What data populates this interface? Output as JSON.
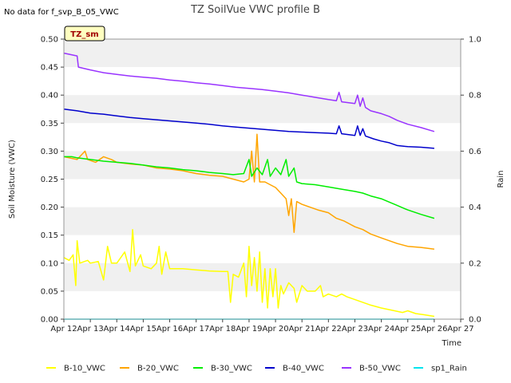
{
  "note": "No data for f_svp_B_05_VWC",
  "chart_data": {
    "type": "line",
    "title": "TZ SoilVue VWC profile B",
    "xlabel": "Time",
    "ylabel": "Soil Moisture (VWC)",
    "y2label": "Rain",
    "badge": "TZ_sm",
    "x_ticks": [
      "Apr 12",
      "Apr 13",
      "Apr 14",
      "Apr 15",
      "Apr 16",
      "Apr 17",
      "Apr 18",
      "Apr 19",
      "Apr 20",
      "Apr 21",
      "Apr 22",
      "Apr 23",
      "Apr 24",
      "Apr 25",
      "Apr 26",
      "Apr 27"
    ],
    "xlim": [
      0,
      15
    ],
    "ylim": [
      0.0,
      0.5
    ],
    "y_ticks": [
      "0.00",
      "0.05",
      "0.10",
      "0.15",
      "0.20",
      "0.25",
      "0.30",
      "0.35",
      "0.40",
      "0.45",
      "0.50"
    ],
    "y2lim": [
      0.0,
      1.0
    ],
    "y2_ticks": [
      "0.0",
      "0.2",
      "0.4",
      "0.6",
      "0.8",
      "1.0"
    ],
    "grid": "horizontal bands",
    "legend_position": "bottom",
    "series": [
      {
        "name": "B-10_VWC",
        "color": "#ffff00",
        "axis": "left",
        "points": [
          [
            0.0,
            0.11
          ],
          [
            0.2,
            0.105
          ],
          [
            0.35,
            0.115
          ],
          [
            0.45,
            0.06
          ],
          [
            0.5,
            0.14
          ],
          [
            0.6,
            0.1
          ],
          [
            0.9,
            0.105
          ],
          [
            1.0,
            0.1
          ],
          [
            1.3,
            0.103
          ],
          [
            1.5,
            0.07
          ],
          [
            1.65,
            0.13
          ],
          [
            1.8,
            0.1
          ],
          [
            2.0,
            0.1
          ],
          [
            2.3,
            0.12
          ],
          [
            2.5,
            0.085
          ],
          [
            2.6,
            0.16
          ],
          [
            2.7,
            0.095
          ],
          [
            2.9,
            0.115
          ],
          [
            3.0,
            0.095
          ],
          [
            3.3,
            0.09
          ],
          [
            3.5,
            0.1
          ],
          [
            3.6,
            0.13
          ],
          [
            3.7,
            0.08
          ],
          [
            3.85,
            0.12
          ],
          [
            4.0,
            0.09
          ],
          [
            4.5,
            0.09
          ],
          [
            5.0,
            0.088
          ],
          [
            5.5,
            0.086
          ],
          [
            6.0,
            0.085
          ],
          [
            6.2,
            0.085
          ],
          [
            6.3,
            0.03
          ],
          [
            6.4,
            0.08
          ],
          [
            6.6,
            0.075
          ],
          [
            6.8,
            0.1
          ],
          [
            6.9,
            0.04
          ],
          [
            7.0,
            0.13
          ],
          [
            7.1,
            0.06
          ],
          [
            7.2,
            0.11
          ],
          [
            7.3,
            0.05
          ],
          [
            7.4,
            0.12
          ],
          [
            7.5,
            0.03
          ],
          [
            7.6,
            0.09
          ],
          [
            7.7,
            0.02
          ],
          [
            7.8,
            0.09
          ],
          [
            7.9,
            0.04
          ],
          [
            8.0,
            0.09
          ],
          [
            8.1,
            0.02
          ],
          [
            8.2,
            0.06
          ],
          [
            8.3,
            0.045
          ],
          [
            8.5,
            0.065
          ],
          [
            8.7,
            0.055
          ],
          [
            8.8,
            0.03
          ],
          [
            9.0,
            0.06
          ],
          [
            9.2,
            0.05
          ],
          [
            9.5,
            0.05
          ],
          [
            9.7,
            0.06
          ],
          [
            9.8,
            0.04
          ],
          [
            10.0,
            0.045
          ],
          [
            10.3,
            0.04
          ],
          [
            10.5,
            0.045
          ],
          [
            10.7,
            0.04
          ],
          [
            11.0,
            0.035
          ],
          [
            11.3,
            0.03
          ],
          [
            11.6,
            0.025
          ],
          [
            12.0,
            0.02
          ],
          [
            12.5,
            0.015
          ],
          [
            12.8,
            0.012
          ],
          [
            13.0,
            0.015
          ],
          [
            13.3,
            0.01
          ],
          [
            13.6,
            0.008
          ],
          [
            14.0,
            0.005
          ]
        ]
      },
      {
        "name": "B-20_VWC",
        "color": "#ffa500",
        "axis": "left",
        "points": [
          [
            0.0,
            0.29
          ],
          [
            0.5,
            0.285
          ],
          [
            0.8,
            0.3
          ],
          [
            0.9,
            0.285
          ],
          [
            1.2,
            0.28
          ],
          [
            1.5,
            0.29
          ],
          [
            1.8,
            0.285
          ],
          [
            2.0,
            0.28
          ],
          [
            2.5,
            0.277
          ],
          [
            3.0,
            0.275
          ],
          [
            3.5,
            0.27
          ],
          [
            4.0,
            0.268
          ],
          [
            4.5,
            0.265
          ],
          [
            5.0,
            0.26
          ],
          [
            5.5,
            0.257
          ],
          [
            6.0,
            0.255
          ],
          [
            6.4,
            0.25
          ],
          [
            6.8,
            0.245
          ],
          [
            7.0,
            0.25
          ],
          [
            7.1,
            0.3
          ],
          [
            7.2,
            0.245
          ],
          [
            7.3,
            0.33
          ],
          [
            7.4,
            0.245
          ],
          [
            7.6,
            0.245
          ],
          [
            7.8,
            0.24
          ],
          [
            8.0,
            0.235
          ],
          [
            8.2,
            0.225
          ],
          [
            8.4,
            0.215
          ],
          [
            8.5,
            0.185
          ],
          [
            8.6,
            0.215
          ],
          [
            8.7,
            0.155
          ],
          [
            8.8,
            0.21
          ],
          [
            9.0,
            0.205
          ],
          [
            9.3,
            0.2
          ],
          [
            9.6,
            0.195
          ],
          [
            10.0,
            0.19
          ],
          [
            10.3,
            0.18
          ],
          [
            10.6,
            0.175
          ],
          [
            11.0,
            0.165
          ],
          [
            11.3,
            0.16
          ],
          [
            11.6,
            0.152
          ],
          [
            12.0,
            0.145
          ],
          [
            12.3,
            0.14
          ],
          [
            12.6,
            0.135
          ],
          [
            13.0,
            0.13
          ],
          [
            13.5,
            0.128
          ],
          [
            14.0,
            0.125
          ]
        ]
      },
      {
        "name": "B-30_VWC",
        "color": "#00ee00",
        "axis": "left",
        "points": [
          [
            0.0,
            0.29
          ],
          [
            0.3,
            0.29
          ],
          [
            0.5,
            0.288
          ],
          [
            1.0,
            0.285
          ],
          [
            1.5,
            0.282
          ],
          [
            2.0,
            0.28
          ],
          [
            2.5,
            0.278
          ],
          [
            3.0,
            0.275
          ],
          [
            3.5,
            0.272
          ],
          [
            4.0,
            0.27
          ],
          [
            4.5,
            0.267
          ],
          [
            5.0,
            0.265
          ],
          [
            5.5,
            0.262
          ],
          [
            6.0,
            0.26
          ],
          [
            6.4,
            0.258
          ],
          [
            6.8,
            0.26
          ],
          [
            7.0,
            0.285
          ],
          [
            7.1,
            0.255
          ],
          [
            7.3,
            0.27
          ],
          [
            7.5,
            0.258
          ],
          [
            7.7,
            0.285
          ],
          [
            7.8,
            0.255
          ],
          [
            8.0,
            0.27
          ],
          [
            8.2,
            0.258
          ],
          [
            8.4,
            0.285
          ],
          [
            8.5,
            0.255
          ],
          [
            8.7,
            0.27
          ],
          [
            8.8,
            0.245
          ],
          [
            9.0,
            0.242
          ],
          [
            9.5,
            0.24
          ],
          [
            10.0,
            0.236
          ],
          [
            10.5,
            0.232
          ],
          [
            11.0,
            0.228
          ],
          [
            11.3,
            0.225
          ],
          [
            11.6,
            0.22
          ],
          [
            12.0,
            0.215
          ],
          [
            12.5,
            0.205
          ],
          [
            13.0,
            0.195
          ],
          [
            13.5,
            0.187
          ],
          [
            14.0,
            0.18
          ]
        ]
      },
      {
        "name": "B-40_VWC",
        "color": "#0000cc",
        "axis": "left",
        "points": [
          [
            0.0,
            0.375
          ],
          [
            0.5,
            0.372
          ],
          [
            1.0,
            0.368
          ],
          [
            1.5,
            0.366
          ],
          [
            2.0,
            0.363
          ],
          [
            2.5,
            0.36
          ],
          [
            3.0,
            0.358
          ],
          [
            3.5,
            0.356
          ],
          [
            4.0,
            0.354
          ],
          [
            4.5,
            0.352
          ],
          [
            5.0,
            0.35
          ],
          [
            5.5,
            0.348
          ],
          [
            6.0,
            0.345
          ],
          [
            6.5,
            0.343
          ],
          [
            7.0,
            0.341
          ],
          [
            7.5,
            0.339
          ],
          [
            8.0,
            0.337
          ],
          [
            8.5,
            0.335
          ],
          [
            9.0,
            0.334
          ],
          [
            9.5,
            0.333
          ],
          [
            10.0,
            0.332
          ],
          [
            10.3,
            0.331
          ],
          [
            10.4,
            0.345
          ],
          [
            10.5,
            0.331
          ],
          [
            11.0,
            0.328
          ],
          [
            11.1,
            0.345
          ],
          [
            11.2,
            0.328
          ],
          [
            11.3,
            0.34
          ],
          [
            11.4,
            0.327
          ],
          [
            11.7,
            0.322
          ],
          [
            12.0,
            0.318
          ],
          [
            12.3,
            0.315
          ],
          [
            12.6,
            0.31
          ],
          [
            13.0,
            0.308
          ],
          [
            13.5,
            0.307
          ],
          [
            14.0,
            0.305
          ]
        ]
      },
      {
        "name": "B-50_VWC",
        "color": "#9933ff",
        "axis": "left",
        "points": [
          [
            0.0,
            0.475
          ],
          [
            0.5,
            0.47
          ],
          [
            0.55,
            0.45
          ],
          [
            1.0,
            0.445
          ],
          [
            1.5,
            0.44
          ],
          [
            2.0,
            0.437
          ],
          [
            2.5,
            0.434
          ],
          [
            3.0,
            0.432
          ],
          [
            3.5,
            0.43
          ],
          [
            4.0,
            0.427
          ],
          [
            4.5,
            0.425
          ],
          [
            5.0,
            0.422
          ],
          [
            5.5,
            0.42
          ],
          [
            6.0,
            0.417
          ],
          [
            6.5,
            0.414
          ],
          [
            7.0,
            0.412
          ],
          [
            7.5,
            0.41
          ],
          [
            8.0,
            0.407
          ],
          [
            8.5,
            0.404
          ],
          [
            9.0,
            0.4
          ],
          [
            9.5,
            0.396
          ],
          [
            10.0,
            0.392
          ],
          [
            10.3,
            0.39
          ],
          [
            10.4,
            0.405
          ],
          [
            10.5,
            0.388
          ],
          [
            11.0,
            0.385
          ],
          [
            11.1,
            0.4
          ],
          [
            11.2,
            0.38
          ],
          [
            11.3,
            0.395
          ],
          [
            11.4,
            0.378
          ],
          [
            11.6,
            0.372
          ],
          [
            12.0,
            0.367
          ],
          [
            12.3,
            0.362
          ],
          [
            12.6,
            0.355
          ],
          [
            13.0,
            0.348
          ],
          [
            13.5,
            0.342
          ],
          [
            14.0,
            0.335
          ]
        ]
      },
      {
        "name": "sp1_Rain",
        "color": "#00e5ee",
        "axis": "right",
        "points": [
          [
            0.0,
            0.0
          ],
          [
            14.0,
            0.0
          ]
        ]
      }
    ]
  }
}
